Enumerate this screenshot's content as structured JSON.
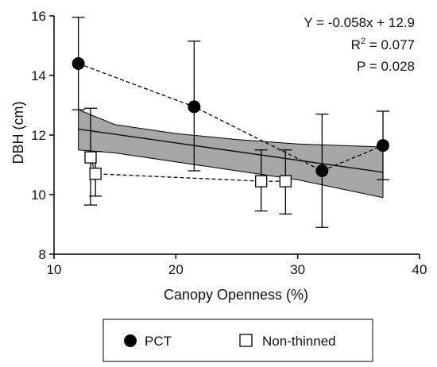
{
  "chart_data": {
    "type": "scatter",
    "xlabel": "Canopy Openness (%)",
    "ylabel": "DBH (cm)",
    "xlim": [
      10,
      40
    ],
    "ylim": [
      8,
      16
    ],
    "xticks": [
      10,
      20,
      30,
      40
    ],
    "yticks": [
      8,
      10,
      12,
      14,
      16
    ],
    "grid": false,
    "legend_position": "bottom",
    "series": [
      {
        "name": "PCT",
        "marker": "filled-circle",
        "color": "#000000",
        "connect": "dashed",
        "points": [
          {
            "x": 12.0,
            "y": 14.4,
            "err_low": 12.85,
            "err_high": 15.95
          },
          {
            "x": 21.5,
            "y": 12.95,
            "err_low": 10.8,
            "err_high": 15.15
          },
          {
            "x": 32.0,
            "y": 10.8,
            "err_low": 8.9,
            "err_high": 12.7
          },
          {
            "x": 37.0,
            "y": 11.65,
            "err_low": 10.5,
            "err_high": 12.8
          }
        ]
      },
      {
        "name": "Non-thinned",
        "marker": "open-square",
        "color": "#000000",
        "connect": "dashed",
        "points": [
          {
            "x": 13.0,
            "y": 11.25,
            "err_low": 9.65,
            "err_high": 12.9
          },
          {
            "x": 13.4,
            "y": 10.7,
            "err_low": 9.95,
            "err_high": 11.45
          },
          {
            "x": 27.0,
            "y": 10.45,
            "err_low": 9.45,
            "err_high": 11.5
          },
          {
            "x": 29.0,
            "y": 10.45,
            "err_low": 9.35,
            "err_high": 11.5
          }
        ]
      }
    ],
    "regression": {
      "x_range": [
        12.0,
        37.0
      ],
      "line": [
        [
          12.0,
          12.2
        ],
        [
          37.0,
          10.75
        ]
      ],
      "ci_upper": [
        [
          12.0,
          12.85
        ],
        [
          15.0,
          12.35
        ],
        [
          20.0,
          12.05
        ],
        [
          25.0,
          11.85
        ],
        [
          30.0,
          11.7
        ],
        [
          37.0,
          11.6
        ]
      ],
      "ci_lower": [
        [
          12.0,
          11.5
        ],
        [
          15.0,
          11.4
        ],
        [
          20.0,
          11.1
        ],
        [
          25.0,
          10.8
        ],
        [
          30.0,
          10.5
        ],
        [
          37.0,
          9.9
        ]
      ],
      "band_color": "#a6a6a6"
    },
    "annotations": {
      "equation": "Y = -0.058x + 12.9",
      "r2_prefix": "R",
      "r2_superscript": "2",
      "r2_value": " = 0.077",
      "p_value": "P = 0.028"
    }
  }
}
